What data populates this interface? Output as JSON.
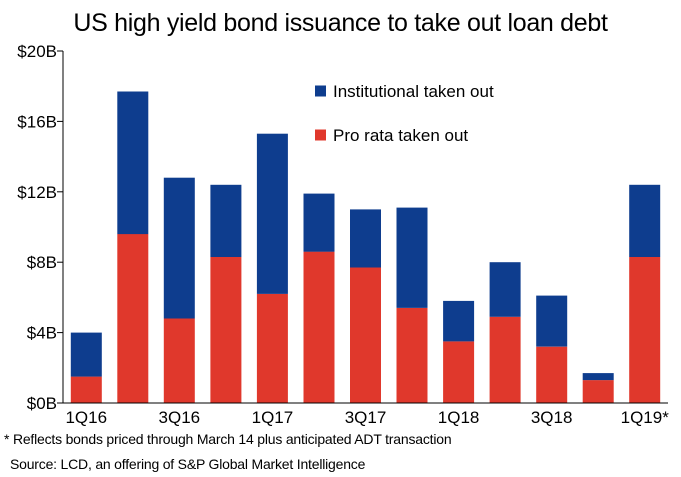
{
  "title": "US high yield bond issuance to take out loan debt",
  "footnote": "* Reflects bonds priced through March 14 plus anticipated ADT transaction",
  "source": "Source: LCD, an offering of S&P Global Market Intelligence",
  "colors": {
    "institutional": "#0e3d8e",
    "pro_rata": "#e0382c",
    "axis": "#000000"
  },
  "chart_data": {
    "type": "bar",
    "stacked": true,
    "categories": [
      "1Q16",
      "2Q16",
      "3Q16",
      "4Q16",
      "1Q17",
      "2Q17",
      "3Q17",
      "4Q17",
      "1Q18",
      "2Q18",
      "3Q18",
      "4Q18",
      "1Q19*"
    ],
    "x_tick_labels": [
      "1Q16",
      "",
      "3Q16",
      "",
      "1Q17",
      "",
      "3Q17",
      "",
      "1Q18",
      "",
      "3Q18",
      "",
      "1Q19*"
    ],
    "series": [
      {
        "name": "Pro rata taken out",
        "color": "#e0382c",
        "values": [
          1.5,
          9.6,
          4.8,
          8.3,
          6.2,
          8.6,
          7.7,
          5.4,
          3.5,
          4.9,
          3.2,
          1.3,
          8.3
        ]
      },
      {
        "name": "Institutional taken out",
        "color": "#0e3d8e",
        "values": [
          2.5,
          8.1,
          8.0,
          4.1,
          9.1,
          3.3,
          3.3,
          5.7,
          2.3,
          3.1,
          2.9,
          0.4,
          4.1
        ]
      }
    ],
    "legend_order": [
      "Institutional taken out",
      "Pro rata taken out"
    ],
    "legend_position": "top-right",
    "ylim": [
      0,
      20
    ],
    "y_ticks": [
      0,
      4,
      8,
      12,
      16,
      20
    ],
    "y_tick_labels": [
      "$0B",
      "$4B",
      "$8B",
      "$12B",
      "$16B",
      "$20B"
    ],
    "xlabel": "",
    "ylabel": "",
    "grid": false
  }
}
